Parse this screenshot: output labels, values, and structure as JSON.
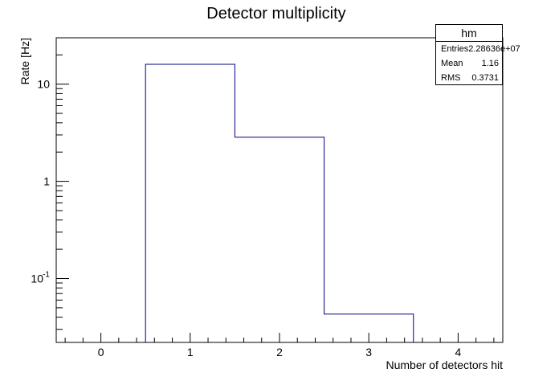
{
  "chart_data": {
    "type": "histogram",
    "title": "Detector multiplicity",
    "xlabel": "Number of detectors hit",
    "ylabel": "Rate [Hz]",
    "xlim": [
      -0.5,
      4.5
    ],
    "ylim": [
      0.022,
      30
    ],
    "yscale": "log",
    "x_ticks": [
      0,
      1,
      2,
      3,
      4
    ],
    "y_ticks": [
      {
        "value": 0.1,
        "label": "10",
        "exp": "-1"
      },
      {
        "value": 1,
        "label": "1",
        "exp": ""
      },
      {
        "value": 10,
        "label": "10",
        "exp": ""
      }
    ],
    "bins": [
      {
        "low": 0.5,
        "high": 1.5,
        "value": 16
      },
      {
        "low": 1.5,
        "high": 2.5,
        "value": 2.85
      },
      {
        "low": 2.5,
        "high": 3.5,
        "value": 0.043
      }
    ],
    "line_color": "#000080",
    "grid": false,
    "stats": {
      "name": "hm",
      "rows": [
        {
          "label": "Entries",
          "value": "2.28636e+07"
        },
        {
          "label": "Mean",
          "value": "1.16"
        },
        {
          "label": "RMS",
          "value": "0.3731"
        }
      ]
    }
  }
}
